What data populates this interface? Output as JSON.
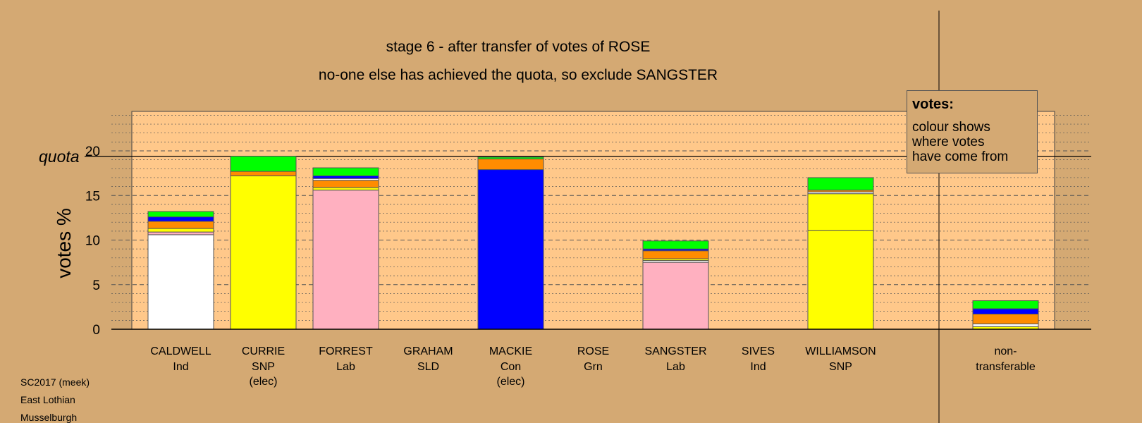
{
  "chart_data": {
    "type": "bar",
    "stacked": true,
    "title": "stage 6 - after transfer of votes of ROSE",
    "subtitle": "no-one else has achieved the quota, so exclude SANGSTER",
    "ylabel": "votes %",
    "quota_label": "quota",
    "quota": 19.4,
    "ylim": [
      0,
      24
    ],
    "yticks": [
      0,
      5,
      10,
      15,
      20
    ],
    "colors": {
      "Ind": "#FFFFFF",
      "SNP": "#FFFF00",
      "Lab": "#FFB0C0",
      "SLD": "#FF8C00",
      "Con": "#0000FF",
      "Grn": "#00FF00",
      "Caldwell": "#FFFFFF",
      "Williamson": "#FFFF00"
    },
    "categories": [
      {
        "name": "CALDWELL",
        "party": "Ind",
        "elected": "",
        "segments": [
          {
            "from": "Caldwell",
            "value": 10.6
          },
          {
            "from": "Lab",
            "value": 0.3
          },
          {
            "from": "SNP",
            "value": 0.4
          },
          {
            "from": "SLD",
            "value": 0.8
          },
          {
            "from": "Con",
            "value": 0.5
          },
          {
            "from": "Grn",
            "value": 0.6
          }
        ]
      },
      {
        "name": "CURRIE",
        "party": "SNP",
        "elected": "(elec)",
        "segments": [
          {
            "from": "SNP",
            "value": 17.2
          },
          {
            "from": "SLD",
            "value": 0.5
          },
          {
            "from": "Grn",
            "value": 1.7
          }
        ]
      },
      {
        "name": "FORREST",
        "party": "Lab",
        "elected": "",
        "segments": [
          {
            "from": "Lab",
            "value": 15.6
          },
          {
            "from": "SNP",
            "value": 0.3
          },
          {
            "from": "SLD",
            "value": 0.8
          },
          {
            "from": "Caldwell",
            "value": 0.2
          },
          {
            "from": "Con",
            "value": 0.3
          },
          {
            "from": "Grn",
            "value": 0.9
          }
        ]
      },
      {
        "name": "GRAHAM",
        "party": "SLD",
        "elected": "",
        "segments": []
      },
      {
        "name": "MACKIE",
        "party": "Con",
        "elected": "(elec)",
        "segments": [
          {
            "from": "Con",
            "value": 17.9
          },
          {
            "from": "SLD",
            "value": 1.2
          },
          {
            "from": "Grn",
            "value": 0.2
          }
        ]
      },
      {
        "name": "ROSE",
        "party": "Grn",
        "elected": "",
        "segments": []
      },
      {
        "name": "SANGSTER",
        "party": "Lab",
        "elected": "",
        "segments": [
          {
            "from": "Lab",
            "value": 7.5
          },
          {
            "from": "Caldwell",
            "value": 0.2
          },
          {
            "from": "SNP",
            "value": 0.2
          },
          {
            "from": "SLD",
            "value": 0.9
          },
          {
            "from": "Con",
            "value": 0.2
          },
          {
            "from": "Grn",
            "value": 0.9
          }
        ]
      },
      {
        "name": "SIVES",
        "party": "Ind",
        "elected": "",
        "segments": []
      },
      {
        "name": "WILLIAMSON",
        "party": "SNP",
        "elected": "",
        "segments": [
          {
            "from": "Williamson",
            "value": 11.1
          },
          {
            "from": "SNP",
            "value": 4.1
          },
          {
            "from": "Caldwell",
            "value": 0.2
          },
          {
            "from": "SLD",
            "value": 0.2
          },
          {
            "from": "Grn",
            "value": 1.4
          }
        ]
      }
    ],
    "nontransferable": {
      "name": "non-",
      "name2": "transferable",
      "segments": [
        {
          "from": "SNP",
          "value": 0.3
        },
        {
          "from": "Caldwell",
          "value": 0.3
        },
        {
          "from": "SLD",
          "value": 1.1
        },
        {
          "from": "Con",
          "value": 0.6
        },
        {
          "from": "Grn",
          "value": 0.9
        }
      ]
    }
  },
  "legend": {
    "title": "votes:",
    "lines": [
      "colour shows",
      "where votes",
      "have come from"
    ]
  },
  "footer": [
    "SC2017 (meek)",
    "East Lothian",
    "Musselburgh"
  ]
}
